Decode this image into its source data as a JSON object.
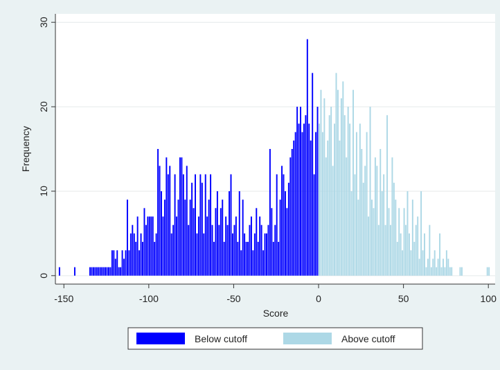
{
  "chart_data": {
    "type": "histogram",
    "x_label": "Score",
    "y_label": "Frequency",
    "xlim": [
      -155,
      104
    ],
    "ylim": [
      -1,
      31
    ],
    "xticks": [
      -150,
      -100,
      -50,
      0,
      50,
      100
    ],
    "yticks": [
      0,
      10,
      20,
      30
    ],
    "grid": true,
    "legend_position": "bottom",
    "series": [
      {
        "name": "Below cutoff",
        "color": "#0000ff",
        "bins": [
          -155,
          -154,
          -153,
          -152,
          -151,
          -150,
          -149,
          -148,
          -147,
          -146,
          -145,
          -144,
          -143,
          -142,
          -141,
          -140,
          -139,
          -138,
          -137,
          -136,
          -135,
          -134,
          -133,
          -132,
          -131,
          -130,
          -129,
          -128,
          -127,
          -126,
          -125,
          -124,
          -123,
          -122,
          -121,
          -120,
          -119,
          -118,
          -117,
          -116,
          -115,
          -114,
          -113,
          -112,
          -111,
          -110,
          -109,
          -108,
          -107,
          -106,
          -105,
          -104,
          -103,
          -102,
          -101,
          -100,
          -99,
          -98,
          -97,
          -96,
          -95,
          -94,
          -93,
          -92,
          -91,
          -90,
          -89,
          -88,
          -87,
          -86,
          -85,
          -84,
          -83,
          -82,
          -81,
          -80,
          -79,
          -78,
          -77,
          -76,
          -75,
          -74,
          -73,
          -72,
          -71,
          -70,
          -69,
          -68,
          -67,
          -66,
          -65,
          -64,
          -63,
          -62,
          -61,
          -60,
          -59,
          -58,
          -57,
          -56,
          -55,
          -54,
          -53,
          -52,
          -51,
          -50,
          -49,
          -48,
          -47,
          -46,
          -45,
          -44,
          -43,
          -42,
          -41,
          -40,
          -39,
          -38,
          -37,
          -36,
          -35,
          -34,
          -33,
          -32,
          -31,
          -30,
          -29,
          -28,
          -27,
          -26,
          -25,
          -24,
          -23,
          -22,
          -21,
          -20,
          -19,
          -18,
          -17,
          -16,
          -15,
          -14,
          -13,
          -12,
          -11,
          -10,
          -9,
          -8,
          -7,
          -6,
          -5,
          -4,
          -3,
          -2,
          -1,
          0
        ],
        "counts": [
          0,
          0,
          1,
          0,
          0,
          0,
          0,
          0,
          0,
          0,
          0,
          1,
          0,
          0,
          0,
          0,
          0,
          0,
          0,
          0,
          1,
          1,
          1,
          1,
          1,
          1,
          1,
          1,
          1,
          1,
          1,
          1,
          1,
          3,
          3,
          2,
          3,
          1,
          1,
          3,
          2,
          3,
          9,
          3,
          5,
          6,
          5,
          4,
          7,
          3,
          5,
          4,
          8,
          6,
          7,
          7,
          7,
          7,
          4,
          5,
          15,
          13,
          10,
          7,
          9,
          14,
          12,
          13,
          5,
          6,
          12,
          7,
          9,
          14,
          14,
          12,
          9,
          13,
          6,
          9,
          11,
          8,
          12,
          5,
          7,
          12,
          11,
          5,
          12,
          7,
          9,
          12,
          6,
          4,
          8,
          10,
          6,
          8,
          9,
          4,
          7,
          6,
          10,
          12,
          5,
          6,
          7,
          4,
          10,
          3,
          9,
          5,
          4,
          4,
          6,
          7,
          3,
          5,
          8,
          4,
          7,
          6,
          3,
          5,
          5,
          6,
          15,
          8,
          4,
          6,
          12,
          4,
          9,
          13,
          12,
          10,
          8,
          11,
          14,
          15,
          16,
          17,
          20,
          18,
          20,
          17,
          18,
          19,
          28,
          18,
          16,
          24,
          12,
          17,
          20
        ]
      },
      {
        "name": "Above cutoff",
        "color": "#add8e6",
        "bins": [
          0,
          1,
          2,
          3,
          4,
          5,
          6,
          7,
          8,
          9,
          10,
          11,
          12,
          13,
          14,
          15,
          16,
          17,
          18,
          19,
          20,
          21,
          22,
          23,
          24,
          25,
          26,
          27,
          28,
          29,
          30,
          31,
          32,
          33,
          34,
          35,
          36,
          37,
          38,
          39,
          40,
          41,
          42,
          43,
          44,
          45,
          46,
          47,
          48,
          49,
          50,
          51,
          52,
          53,
          54,
          55,
          56,
          57,
          58,
          59,
          60,
          61,
          62,
          63,
          64,
          65,
          66,
          67,
          68,
          69,
          70,
          71,
          72,
          73,
          74,
          75,
          76,
          77,
          78,
          79,
          80,
          81,
          82,
          83,
          84,
          85,
          86,
          87,
          88,
          89,
          90,
          91,
          92,
          93,
          94,
          95,
          96,
          97,
          98,
          99,
          100,
          101
        ],
        "counts": [
          18,
          22,
          17,
          21,
          14,
          16,
          19,
          20,
          13,
          18,
          24,
          22,
          16,
          21,
          23,
          19,
          14,
          20,
          18,
          10,
          22,
          12,
          17,
          9,
          18,
          15,
          11,
          13,
          17,
          7,
          20,
          9,
          8,
          14,
          13,
          6,
          15,
          10,
          12,
          6,
          19,
          8,
          6,
          14,
          11,
          9,
          4,
          8,
          5,
          3,
          8,
          6,
          10,
          5,
          3,
          9,
          4,
          6,
          7,
          2,
          10,
          3,
          5,
          1,
          2,
          6,
          1,
          2,
          3,
          1,
          2,
          5,
          1,
          2,
          1,
          3,
          2,
          1,
          1,
          0,
          0,
          0,
          0,
          1,
          1,
          0,
          0,
          0,
          0,
          0,
          0,
          0,
          0,
          0,
          0,
          0,
          0,
          0,
          0,
          1,
          1
        ]
      }
    ]
  }
}
